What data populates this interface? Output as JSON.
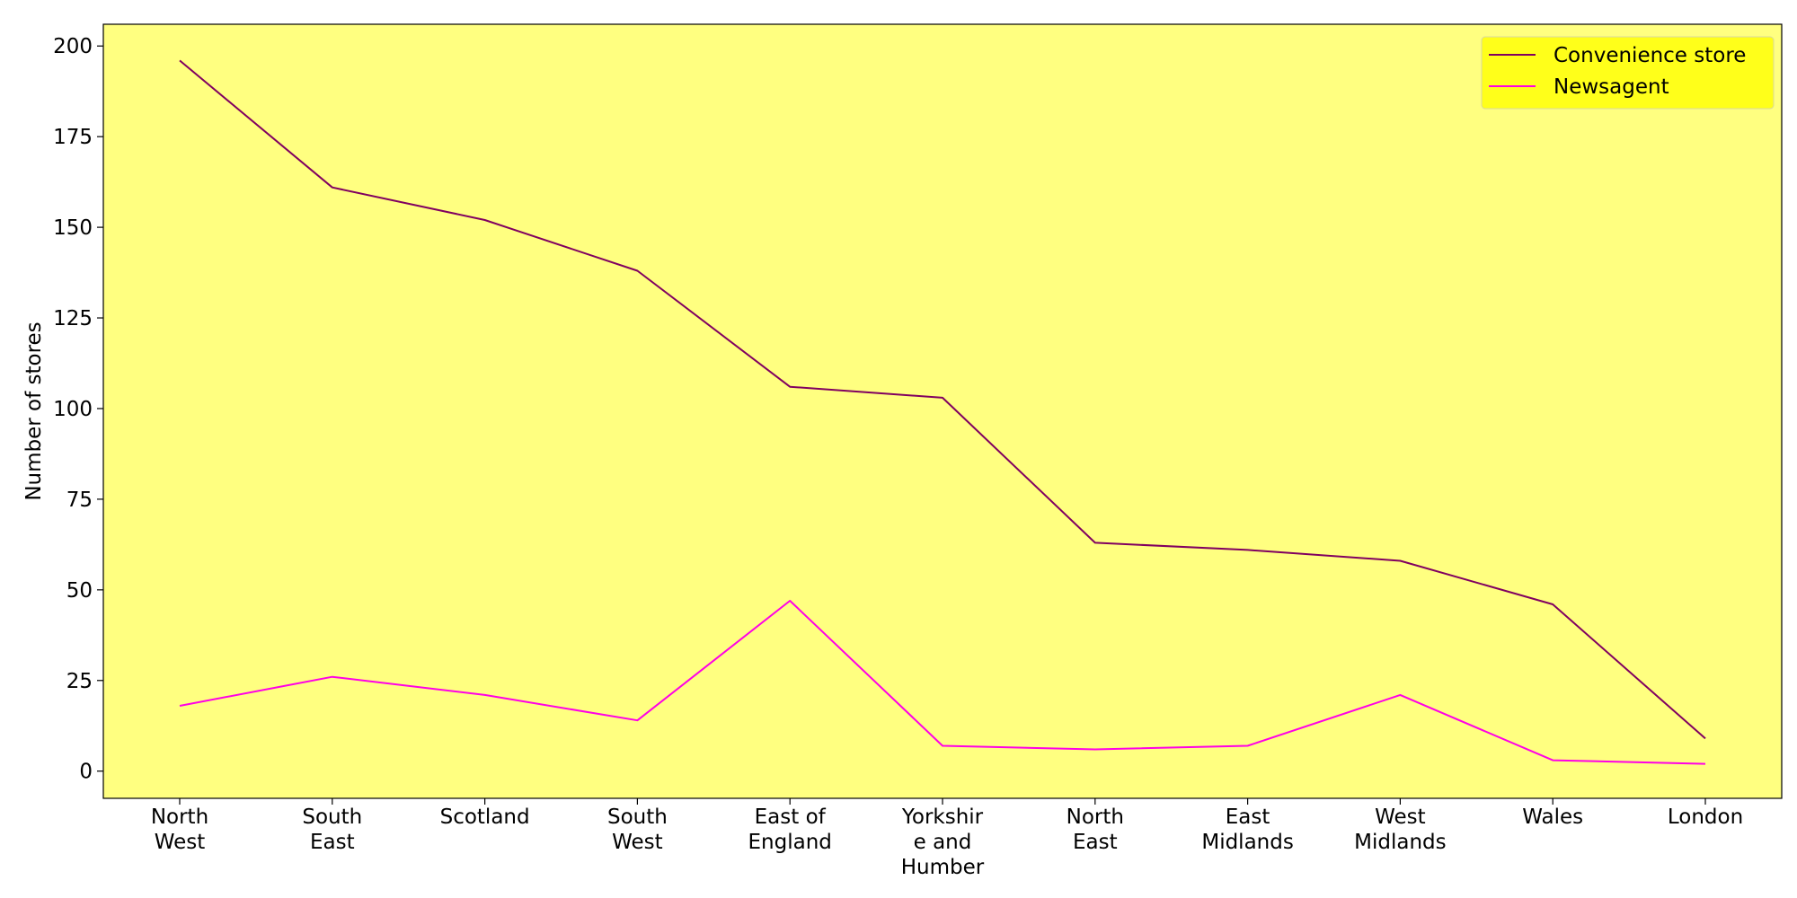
{
  "chart_data": {
    "type": "line",
    "categories": [
      [
        "North",
        "West"
      ],
      [
        "South",
        "East"
      ],
      [
        "Scotland"
      ],
      [
        "South",
        "West"
      ],
      [
        "East of",
        "England"
      ],
      [
        "Yorkshir",
        "e and",
        "Humber"
      ],
      [
        "North",
        "East"
      ],
      [
        "East",
        "Midlands"
      ],
      [
        "West",
        "Midlands"
      ],
      [
        "Wales"
      ],
      [
        "London"
      ]
    ],
    "series": [
      {
        "name": "Convenience store",
        "color": "#800060",
        "values": [
          196,
          161,
          152,
          138,
          106,
          103,
          63,
          61,
          58,
          46,
          9
        ]
      },
      {
        "name": "Newsagent",
        "color": "#ff00e6",
        "values": [
          18,
          26,
          21,
          14,
          47,
          7,
          6,
          7,
          21,
          3,
          2
        ]
      }
    ],
    "ylabel": "Number of stores",
    "xlabel": "",
    "title": "",
    "ylim": [
      -7.5,
      206
    ],
    "yticks": [
      0,
      25,
      50,
      75,
      100,
      125,
      150,
      175,
      200
    ],
    "legend_position": "top-right",
    "plot_background": "#ffff80",
    "legend_background": "#ffff1a"
  }
}
